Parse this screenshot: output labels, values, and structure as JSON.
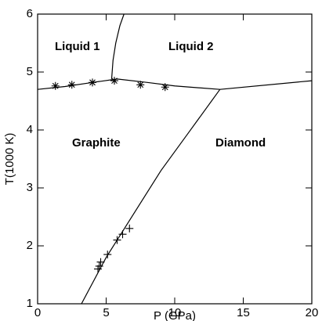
{
  "chart_data": {
    "type": "line",
    "xlabel": "P (GPa)",
    "ylabel": "T(1000 K)",
    "xlim": [
      0,
      20
    ],
    "ylim": [
      1,
      6
    ],
    "xticks": [
      0,
      5,
      10,
      15,
      20
    ],
    "yticks": [
      1,
      2,
      3,
      4,
      5,
      6
    ],
    "color": "#000000",
    "annotations": [
      "Liquid 1",
      "Liquid 2",
      "Graphite",
      "Diamond"
    ],
    "series": [
      {
        "style": "line",
        "x": [
          0,
          2,
          4,
          5.8,
          8,
          10,
          13.3
        ],
        "values": [
          4.7,
          4.75,
          4.82,
          4.88,
          4.82,
          4.76,
          4.7
        ]
      },
      {
        "style": "line",
        "x": [
          13.3,
          20
        ],
        "values": [
          4.7,
          4.85
        ]
      },
      {
        "style": "line",
        "x": [
          5.4,
          5.5,
          5.7,
          6.0,
          6.3
        ],
        "values": [
          4.88,
          5.2,
          5.5,
          5.8,
          6
        ]
      },
      {
        "style": "line",
        "x": [
          3.2,
          5,
          7,
          9,
          11,
          13.3
        ],
        "values": [
          1,
          1.8,
          2.55,
          3.3,
          3.95,
          4.7
        ]
      },
      {
        "style": "star",
        "x": [
          1.3,
          2.5,
          4,
          5.6,
          7.5,
          9.3
        ],
        "values": [
          4.76,
          4.78,
          4.82,
          4.85,
          4.78,
          4.74
        ]
      },
      {
        "style": "plus",
        "x": [
          4.4,
          4.5,
          4.6,
          5.1,
          5.8,
          6.2,
          6.7
        ],
        "values": [
          1.6,
          1.65,
          1.72,
          1.85,
          2.1,
          2.2,
          2.3
        ]
      }
    ]
  }
}
